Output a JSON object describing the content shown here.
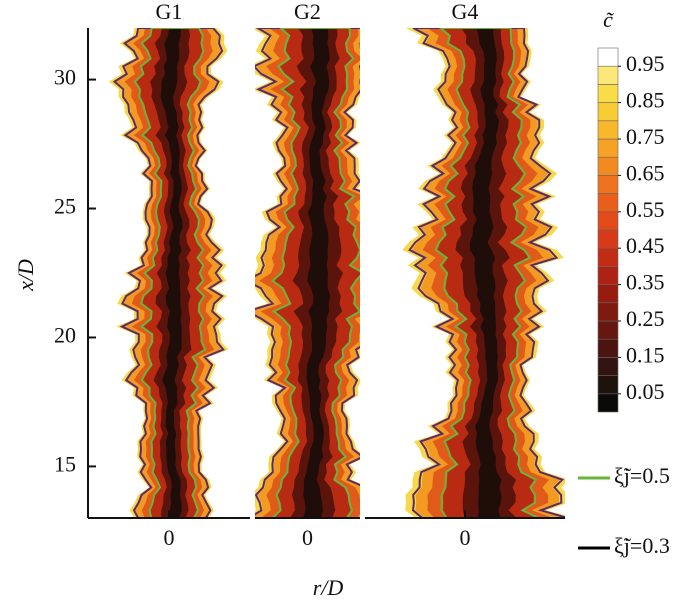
{
  "chart_data": {
    "type": "contour",
    "x_label": "r/D",
    "y_label": "x/D",
    "ylim": [
      13,
      32
    ],
    "yticks": [
      15,
      20,
      25,
      30
    ],
    "panels": [
      {
        "title": "G1",
        "xlim": [
          -1,
          1
        ],
        "xticks": [
          0
        ]
      },
      {
        "title": "G2",
        "xlim": [
          -1,
          1
        ],
        "xticks": [
          0
        ]
      },
      {
        "title": "G4",
        "xlim": [
          -1,
          1
        ],
        "xticks": [
          0
        ]
      }
    ],
    "colorbar": {
      "title": "c̃",
      "lim": [
        0,
        1
      ],
      "ticks": [
        0.05,
        0.15,
        0.25,
        0.35,
        0.45,
        0.55,
        0.65,
        0.75,
        0.85,
        0.95
      ],
      "colors": [
        "#0a0a08",
        "#1e120c",
        "#341410",
        "#4c1410",
        "#661710",
        "#7e1a10",
        "#961c10",
        "#ad2212",
        "#c22c14",
        "#d63a18",
        "#e24a1a",
        "#ea5e1c",
        "#ef721e",
        "#f38a20",
        "#f6a224",
        "#f8b82a",
        "#f9cc34",
        "#fadc48",
        "#fbe878",
        "#ffffff"
      ]
    },
    "legend": [
      {
        "name": "ξ̃j=0.5",
        "color": "#6ab43c"
      },
      {
        "name": "ξ̃j=0.3",
        "color": "#000000"
      }
    ]
  }
}
